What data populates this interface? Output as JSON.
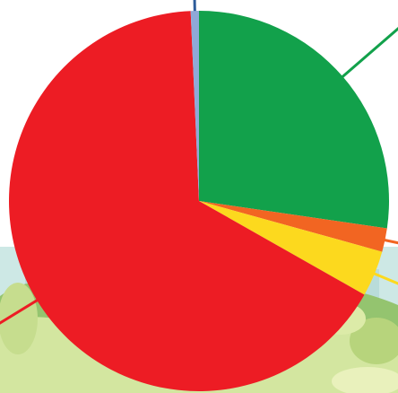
{
  "chart_data": {
    "type": "pie",
    "slices": [
      {
        "value": 27.3,
        "color": "#12A14B"
      },
      {
        "value": 2.0,
        "color": "#F26522"
      },
      {
        "value": 3.9,
        "color": "#FCD91E"
      },
      {
        "value": 66.1,
        "color": "#ED1C24"
      },
      {
        "value": 0.7,
        "color": "#8FA9D8"
      }
    ],
    "start_angle_deg": 0,
    "direction": "clockwise",
    "leader_line_colors": [
      "#12A14B",
      "#F26522",
      "#FCD91E",
      "#ED1C24",
      "#2E5C9A"
    ],
    "title": "",
    "legend": "none",
    "data_labels": "none"
  },
  "background": {
    "description_colors": {
      "sky": "#C8E6E2",
      "hill_dark": "#8DBF6A",
      "hill_light": "#CFE39A",
      "foliage": "#E6EFB0"
    }
  }
}
